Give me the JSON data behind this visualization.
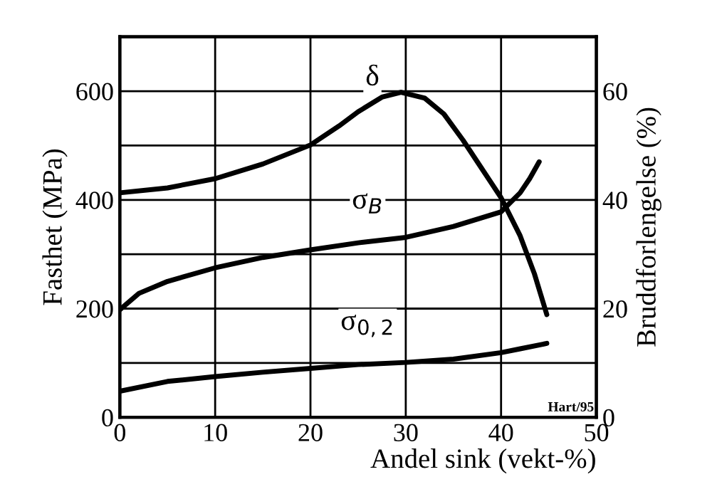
{
  "chart_data": {
    "type": "line",
    "xlabel": "Andel sink (vekt-%)",
    "ylabel": "Fasthet (MPa)",
    "y2label": "Bruddforlengelse (%)",
    "xlim": [
      0,
      50
    ],
    "xticks": [
      0,
      10,
      20,
      30,
      40,
      50
    ],
    "ylim": [
      0,
      700
    ],
    "yticks": [
      0,
      200,
      400,
      600
    ],
    "y2lim": [
      0,
      70
    ],
    "y2ticks": [
      0,
      20,
      40,
      60
    ],
    "grid": true,
    "legend": false,
    "marker": "none",
    "line_style": "solid",
    "annotations": [
      "Hart/95"
    ],
    "series": [
      {
        "name": "δ",
        "color": "#000000",
        "axis": "y2",
        "x": [
          0,
          5,
          10,
          15,
          20,
          23,
          25,
          27.5,
          29.5,
          32,
          34,
          36,
          38,
          40,
          42,
          43.5,
          44.8
        ],
        "values": [
          41.3,
          42.2,
          43.9,
          46.6,
          50.1,
          53.6,
          56.2,
          58.9,
          59.8,
          58.7,
          55.8,
          51.0,
          45.7,
          40.4,
          33.4,
          26.4,
          18.9
        ]
      },
      {
        "name": "σ$_{B}$",
        "color": "#000000",
        "x": [
          0,
          2,
          5,
          10,
          15,
          20,
          25,
          30,
          35,
          40,
          42,
          43,
          44
        ],
        "values": [
          198,
          228,
          250,
          275,
          294,
          308,
          321,
          331,
          351,
          378,
          413,
          439,
          470
        ]
      },
      {
        "name": "σ$_{0,2}$",
        "color": "#000000",
        "x": [
          0,
          5,
          10,
          15,
          20,
          25,
          30,
          35,
          40,
          42,
          44.8
        ],
        "values": [
          48,
          66,
          75,
          83,
          90,
          97,
          101,
          107,
          119,
          126,
          136
        ]
      }
    ]
  }
}
